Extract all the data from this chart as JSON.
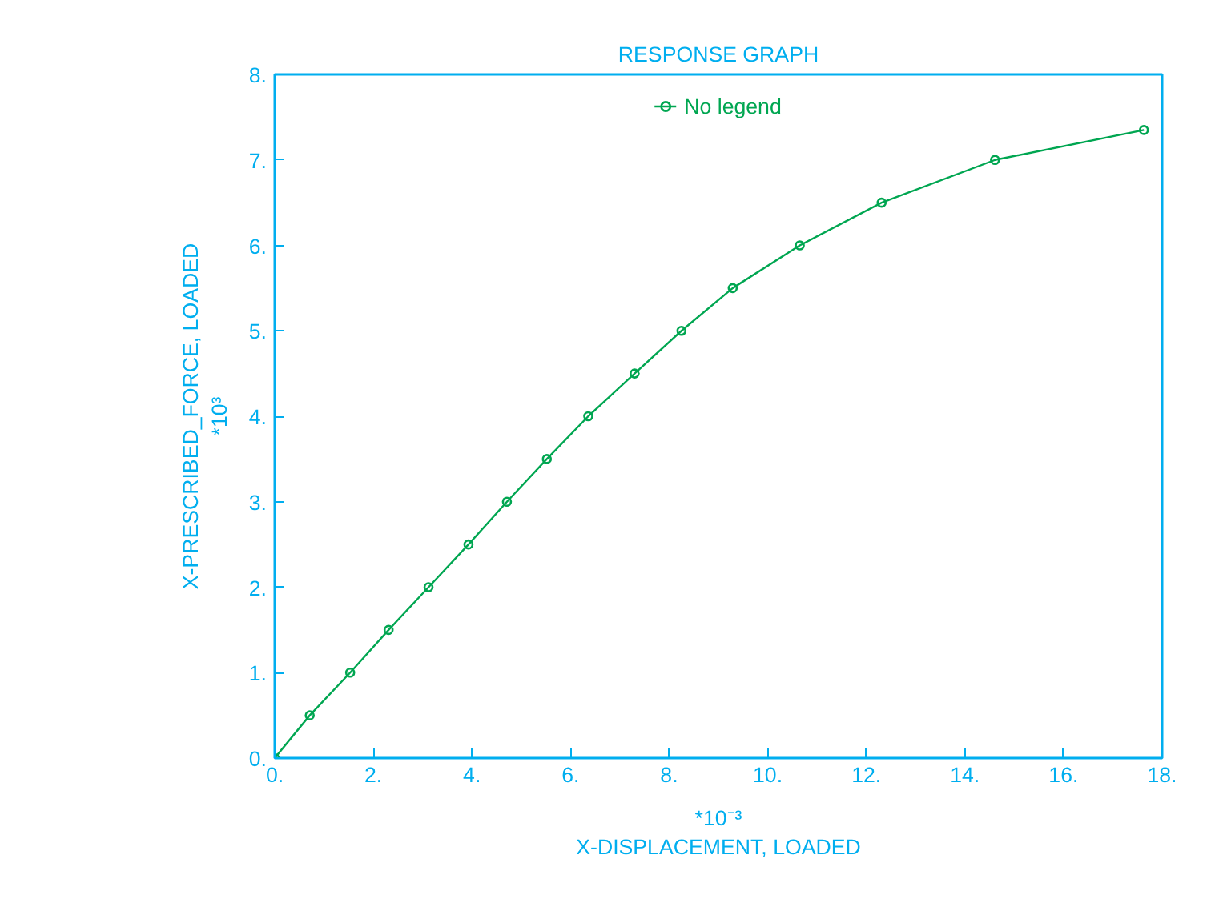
{
  "chart_data": {
    "type": "line",
    "title": "RESPONSE GRAPH",
    "xlabel": "X-DISPLACEMENT, LOADED",
    "ylabel": "X-PRESCRIBED_FORCE, LOADED",
    "annotations": [
      "*10⁻³",
      "*10³"
    ],
    "x": [
      0,
      0.71,
      1.53,
      2.31,
      3.12,
      3.93,
      4.71,
      5.52,
      6.36,
      7.3,
      8.25,
      9.29,
      10.65,
      12.31,
      14.61,
      17.63
    ],
    "series": [
      {
        "name": "No legend",
        "color": "#00a651",
        "values": [
          0,
          0.5,
          1.0,
          1.5,
          2.0,
          2.5,
          3.0,
          3.5,
          4.0,
          4.5,
          5.0,
          5.5,
          6.0,
          6.5,
          7.0,
          7.35
        ]
      }
    ],
    "xlim": [
      0,
      18
    ],
    "ylim": [
      0,
      8
    ],
    "xticks": [
      {
        "value": 0,
        "label": "0."
      },
      {
        "value": 2,
        "label": "2."
      },
      {
        "value": 4,
        "label": "4."
      },
      {
        "value": 6,
        "label": "6."
      },
      {
        "value": 8,
        "label": "8."
      },
      {
        "value": 10,
        "label": "10."
      },
      {
        "value": 12,
        "label": "12."
      },
      {
        "value": 14,
        "label": "14."
      },
      {
        "value": 16,
        "label": "16."
      },
      {
        "value": 18,
        "label": "18."
      }
    ],
    "yticks": [
      {
        "value": 0,
        "label": "0."
      },
      {
        "value": 1,
        "label": "1."
      },
      {
        "value": 2,
        "label": "2."
      },
      {
        "value": 3,
        "label": "3."
      },
      {
        "value": 4,
        "label": "4."
      },
      {
        "value": 5,
        "label": "5."
      },
      {
        "value": 6,
        "label": "6."
      },
      {
        "value": 7,
        "label": "7."
      },
      {
        "value": 8,
        "label": "8."
      }
    ],
    "grid": false,
    "legend": "top",
    "marker": "circle",
    "line_style": "solid"
  }
}
